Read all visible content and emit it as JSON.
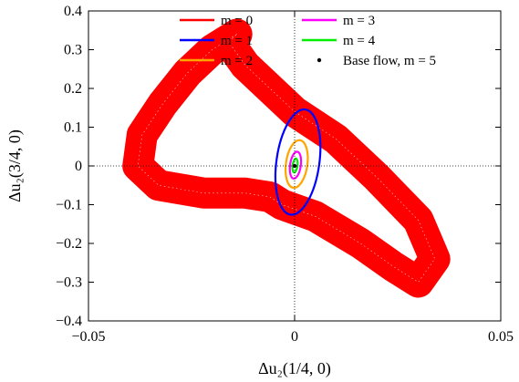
{
  "chart_data": {
    "type": "line",
    "xlabel": "Δu₂(1/4, 0)",
    "ylabel": "Δu₂(3/4, 0)",
    "xlim": [
      -0.05,
      0.05
    ],
    "ylim": [
      -0.4,
      0.4
    ],
    "xticks": [
      -0.05,
      0,
      0.05
    ],
    "xtick_labels": [
      "−0.05",
      "0",
      "0.05"
    ],
    "yticks": [
      -0.4,
      -0.3,
      -0.2,
      -0.1,
      0,
      0.1,
      0.2,
      0.3,
      0.4
    ],
    "ytick_labels": [
      "−0.4",
      "−0.3",
      "−0.2",
      "−0.1",
      "0",
      "0.1",
      "0.2",
      "0.3",
      "0.4"
    ],
    "grid": false,
    "zero_lines": true,
    "legend_position": "top",
    "series": [
      {
        "name": "m = 0",
        "color": "#ff0000",
        "style": "band",
        "x": [
          -0.014,
          -0.02,
          -0.026,
          -0.032,
          -0.037,
          -0.038,
          -0.033,
          -0.022,
          -0.012,
          -0.006,
          -0.003,
          0.005,
          0.016,
          0.024,
          0.03,
          0.034,
          0.03,
          0.02,
          0.01,
          0.0,
          -0.006,
          -0.012,
          -0.016,
          -0.014
        ],
        "y": [
          0.34,
          0.3,
          0.24,
          0.16,
          0.08,
          0.0,
          -0.05,
          -0.07,
          -0.07,
          -0.08,
          -0.1,
          -0.13,
          -0.2,
          -0.26,
          -0.3,
          -0.24,
          -0.14,
          -0.03,
          0.07,
          0.14,
          0.2,
          0.26,
          0.32,
          0.34
        ]
      },
      {
        "name": "m = 1",
        "color": "#0000ff",
        "style": "loop",
        "cx": 0.0008,
        "cy": 0.01,
        "rx": 0.0052,
        "ry": 0.137
      },
      {
        "name": "m = 2",
        "color": "#ffa500",
        "style": "loop",
        "cx": 0.0005,
        "cy": 0.005,
        "rx": 0.0026,
        "ry": 0.062
      },
      {
        "name": "m = 3",
        "color": "#ff00ff",
        "style": "loop",
        "cx": 0.0002,
        "cy": 0.002,
        "rx": 0.0013,
        "ry": 0.035
      },
      {
        "name": "m = 4",
        "color": "#00ee00",
        "style": "loop",
        "cx": 0.0001,
        "cy": 0.001,
        "rx": 0.0006,
        "ry": 0.018
      },
      {
        "name": "Base flow, m = 5",
        "color": "#000000",
        "style": "point",
        "x": [
          0.0
        ],
        "y": [
          0.0
        ]
      }
    ]
  }
}
